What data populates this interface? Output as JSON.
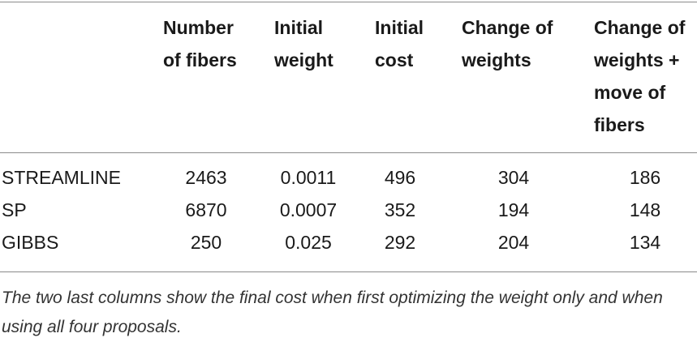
{
  "table": {
    "headers": [
      [
        "",
        ""
      ],
      [
        "Number",
        "of fibers"
      ],
      [
        "Initial",
        "weight"
      ],
      [
        "Initial",
        "cost"
      ],
      [
        "Change of",
        "weights"
      ],
      [
        "Change of",
        "weights +",
        "move of",
        "fibers"
      ]
    ],
    "rows": [
      [
        "STREAMLINE",
        "2463",
        "0.0011",
        "496",
        "304",
        "186"
      ],
      [
        "SP",
        "6870",
        "0.0007",
        "352",
        "194",
        "148"
      ],
      [
        "GIBBS",
        "250",
        "0.025",
        "292",
        "204",
        "134"
      ]
    ]
  },
  "caption": "The two last columns show the final cost when first optimizing the weight only and when using all four proposals."
}
